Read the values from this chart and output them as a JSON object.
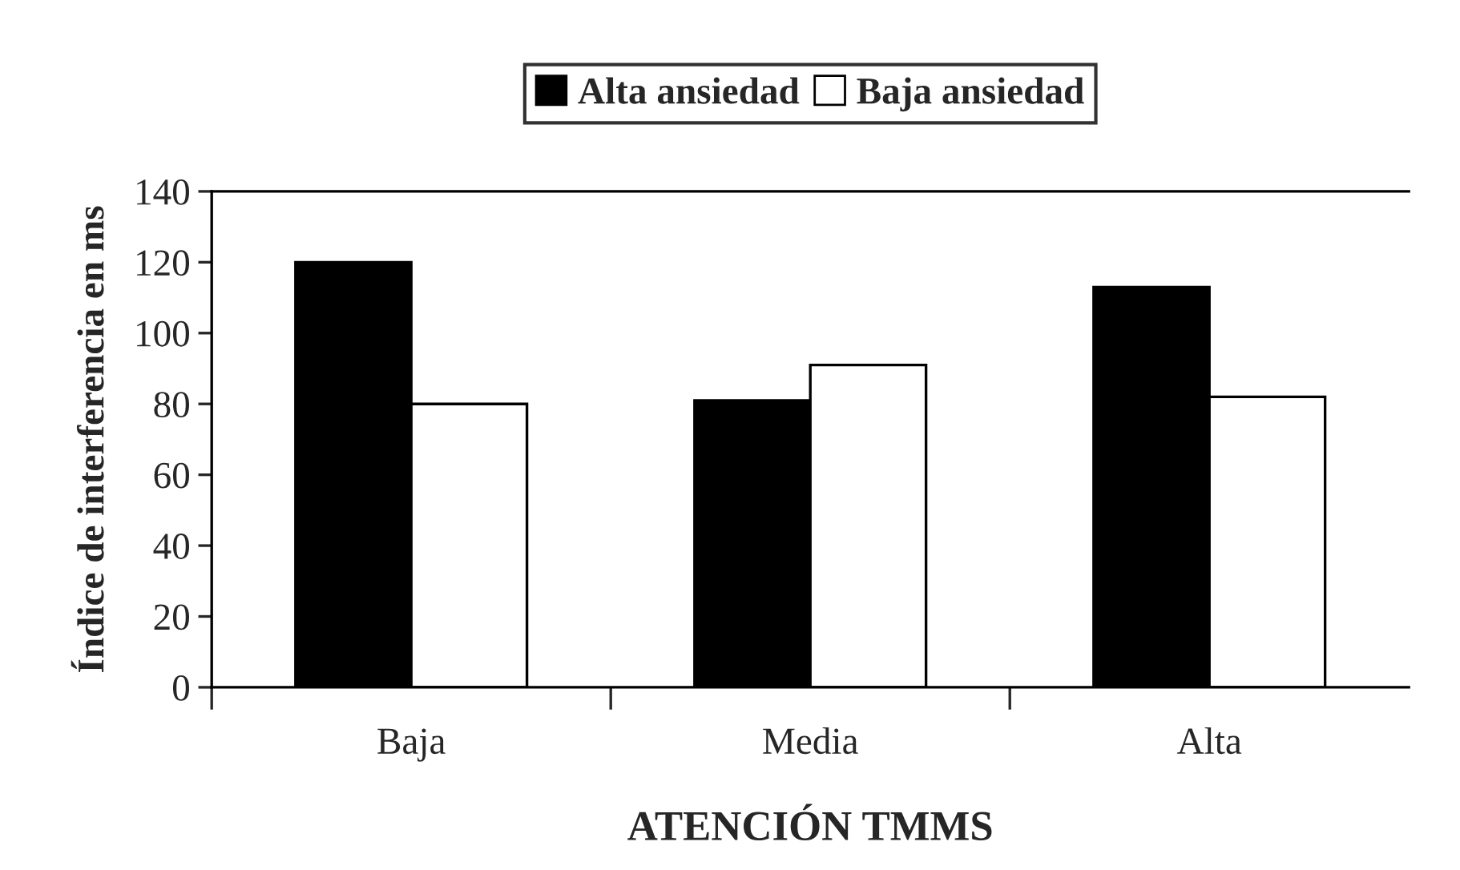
{
  "chart_data": {
    "type": "bar",
    "xlabel": "ATENCIÓN TMMS",
    "ylabel": "Índice de interferencia en ms",
    "categories": [
      "Baja",
      "Media",
      "Alta"
    ],
    "series": [
      {
        "name": "Alta ansiedad",
        "color": "#000000",
        "values": [
          120,
          81,
          113
        ]
      },
      {
        "name": "Baja ansiedad",
        "color": "#ffffff",
        "values": [
          80,
          91,
          82
        ]
      }
    ],
    "ylim": [
      0,
      140
    ],
    "yticks": [
      0,
      20,
      40,
      60,
      80,
      100,
      120,
      140
    ],
    "grid": false,
    "legend": "top"
  }
}
